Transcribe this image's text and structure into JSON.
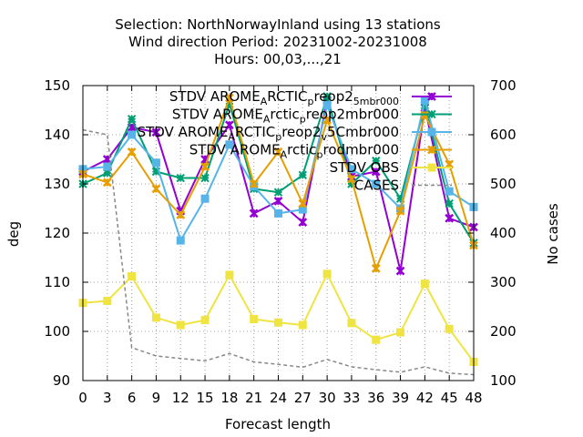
{
  "chart_data": {
    "type": "line",
    "title_lines": [
      "Selection: NorthNorwayInland using    13 stations",
      "Wind direction   Period: 20231002-20231008",
      "Hours:  00,03,...,21"
    ],
    "xlabel": "Forecast length",
    "ylabel": "deg",
    "y2label": "No cases",
    "x": [
      0,
      3,
      6,
      9,
      12,
      15,
      18,
      21,
      24,
      27,
      30,
      33,
      36,
      39,
      42,
      45,
      48
    ],
    "ylim": [
      90,
      150
    ],
    "y2lim": [
      100,
      700
    ],
    "yticks": [
      90,
      100,
      110,
      120,
      130,
      140,
      150
    ],
    "y2ticks": [
      100,
      200,
      300,
      400,
      500,
      600,
      700
    ],
    "grid": true,
    "legend_position": "top-right",
    "series": [
      {
        "name": "STDV AROME_Arctic_preop2_5mbr000",
        "legend_text": [
          "STDV AROME",
          "A",
          "RCTIC",
          "p",
          "reop2",
          "5mbr000"
        ],
        "color": "#9400d3",
        "marker": "x-star",
        "axis": "y",
        "values": [
          132.5,
          135.0,
          141.5,
          140.5,
          124.5,
          135.0,
          142.0,
          124.0,
          126.5,
          122.2,
          147.0,
          131.5,
          132.5,
          112.3,
          145.5,
          123.0,
          121.2
        ]
      },
      {
        "name": "STDV AROME_Arctic_preop2mbr000",
        "legend_text": [
          "STDV AROME",
          "A",
          "rctic",
          "p",
          "reop2mbr000"
        ],
        "color": "#009e73",
        "marker": "star",
        "axis": "y",
        "values": [
          130.0,
          132.2,
          143.2,
          132.5,
          131.2,
          131.2,
          146.3,
          129.0,
          128.3,
          131.8,
          147.8,
          130.0,
          134.7,
          127.0,
          146.0,
          126.0,
          118.0
        ]
      },
      {
        "name": "STDV AROME_Arctic_preop2_v_5Cmbr000",
        "legend_text": [
          "STDV AROME",
          "A",
          "RCTIC",
          "p",
          "reop2",
          "v",
          "5Cmbr000"
        ],
        "color": "#56b4e9",
        "marker": "square",
        "axis": "y",
        "values": [
          133.0,
          133.5,
          140.0,
          134.3,
          118.5,
          127.0,
          138.0,
          129.5,
          124.0,
          124.8,
          146.0,
          133.0,
          130.0,
          125.0,
          147.0,
          128.5,
          125.3
        ]
      },
      {
        "name": "STDV AROME_Arctic_prodmbr000",
        "legend_text": [
          "STDV AROME",
          "A",
          "rctic",
          "p",
          "rodmbr000"
        ],
        "color": "#e69f00",
        "marker": "x-star",
        "axis": "y",
        "values": [
          132.0,
          130.3,
          136.5,
          129.0,
          123.7,
          133.5,
          147.5,
          130.0,
          136.5,
          126.0,
          143.0,
          131.0,
          112.8,
          124.5,
          144.0,
          134.0,
          117.5
        ]
      },
      {
        "name": "STDV OBS",
        "legend_text": [
          "STDV OBS"
        ],
        "color": "#f0e442",
        "marker": "square",
        "axis": "y",
        "values": [
          105.8,
          106.2,
          111.2,
          102.8,
          101.3,
          102.3,
          111.5,
          102.5,
          101.8,
          101.3,
          111.7,
          101.7,
          98.3,
          99.8,
          109.7,
          100.5,
          93.8
        ]
      },
      {
        "name": "CASES",
        "legend_text": [
          "CASES"
        ],
        "color": "#888888",
        "dashed": true,
        "axis": "y2",
        "values": [
          610,
          600,
          167,
          150,
          145,
          140,
          155,
          138,
          133,
          127,
          143,
          128,
          122,
          117,
          128,
          115,
          112
        ]
      }
    ]
  }
}
